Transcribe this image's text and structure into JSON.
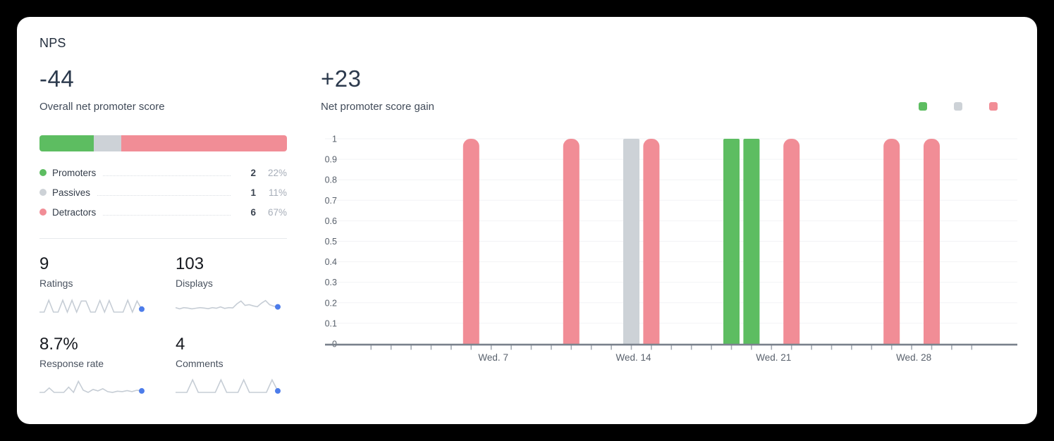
{
  "card_title": "NPS",
  "overview": {
    "score": "-44",
    "label": "Overall net promoter score",
    "segments": [
      {
        "name": "Promoters",
        "count": "2",
        "percent": "22%",
        "percent_value": 22,
        "color": "#5dbd61"
      },
      {
        "name": "Passives",
        "count": "1",
        "percent": "11%",
        "percent_value": 11,
        "color": "#cdd2d7"
      },
      {
        "name": "Detractors",
        "count": "6",
        "percent": "67%",
        "percent_value": 67,
        "color": "#f18d96"
      }
    ]
  },
  "stats": [
    {
      "value": "9",
      "label": "Ratings",
      "spark": [
        0,
        0,
        0.8,
        0,
        0,
        0.8,
        0,
        0.8,
        0,
        0.75,
        0.75,
        0,
        0,
        0.78,
        0,
        0.78,
        0,
        0,
        0,
        0.8,
        0,
        0.75,
        0.2
      ]
    },
    {
      "value": "103",
      "label": "Displays",
      "spark": [
        0.3,
        0.22,
        0.3,
        0.27,
        0.22,
        0.26,
        0.3,
        0.27,
        0.23,
        0.3,
        0.26,
        0.35,
        0.25,
        0.3,
        0.28,
        0.55,
        0.75,
        0.45,
        0.5,
        0.42,
        0.36,
        0.6,
        0.78,
        0.5,
        0.4,
        0.35
      ]
    },
    {
      "value": "8.7%",
      "label": "Response rate",
      "spark": [
        0,
        0,
        0.3,
        0,
        0,
        0,
        0.35,
        0,
        0.75,
        0.15,
        0,
        0.2,
        0.1,
        0.25,
        0.05,
        0,
        0.08,
        0.05,
        0.12,
        0.05,
        0.15,
        0.1
      ]
    },
    {
      "value": "4",
      "label": "Comments",
      "spark": [
        0,
        0,
        0,
        0.85,
        0,
        0,
        0,
        0,
        0.85,
        0,
        0,
        0,
        0.85,
        0,
        0,
        0,
        0,
        0.85,
        0.1
      ]
    }
  ],
  "sparkline_style": {
    "line_color": "#c6cdd5",
    "dot_color": "#4c7cea"
  },
  "chart_data": {
    "type": "bar",
    "title": "+23",
    "subtitle": "Net promoter score gain",
    "ylim": [
      0,
      1
    ],
    "ytick_step": 0.1,
    "ytick_labels": [
      "0",
      "0.1",
      "0.2",
      "0.3",
      "0.4",
      "0.5",
      "0.6",
      "0.7",
      "0.8",
      "0.9",
      "1"
    ],
    "x_axis": {
      "unit": "day",
      "day_min": 1,
      "day_max": 31,
      "labeled_ticks": [
        {
          "day": 7,
          "label": "Wed. 7"
        },
        {
          "day": 14,
          "label": "Wed. 14"
        },
        {
          "day": 21,
          "label": "Wed. 21"
        },
        {
          "day": 28,
          "label": "Wed. 28"
        }
      ]
    },
    "colors": {
      "promoters": "#5dbd61",
      "passives": "#cdd2d7",
      "detractors": "#f18d96"
    },
    "legend": [
      "#5dbd61",
      "#cdd2d7",
      "#f18d96"
    ],
    "bars": [
      {
        "day": 6,
        "value": 1,
        "category": "detractors"
      },
      {
        "day": 11,
        "value": 1,
        "category": "detractors"
      },
      {
        "day": 14,
        "value": 1,
        "category": "passives"
      },
      {
        "day": 15,
        "value": 1,
        "category": "detractors"
      },
      {
        "day": 19,
        "value": 1,
        "category": "promoters"
      },
      {
        "day": 20,
        "value": 1,
        "category": "promoters"
      },
      {
        "day": 22,
        "value": 1,
        "category": "detractors"
      },
      {
        "day": 27,
        "value": 1,
        "category": "detractors"
      },
      {
        "day": 29,
        "value": 1,
        "category": "detractors"
      }
    ],
    "axis_color": "#7a828c",
    "tick_color": "#a3aab3",
    "grid_color": "#f2f3f5",
    "tick_label_color": "#59616c"
  }
}
